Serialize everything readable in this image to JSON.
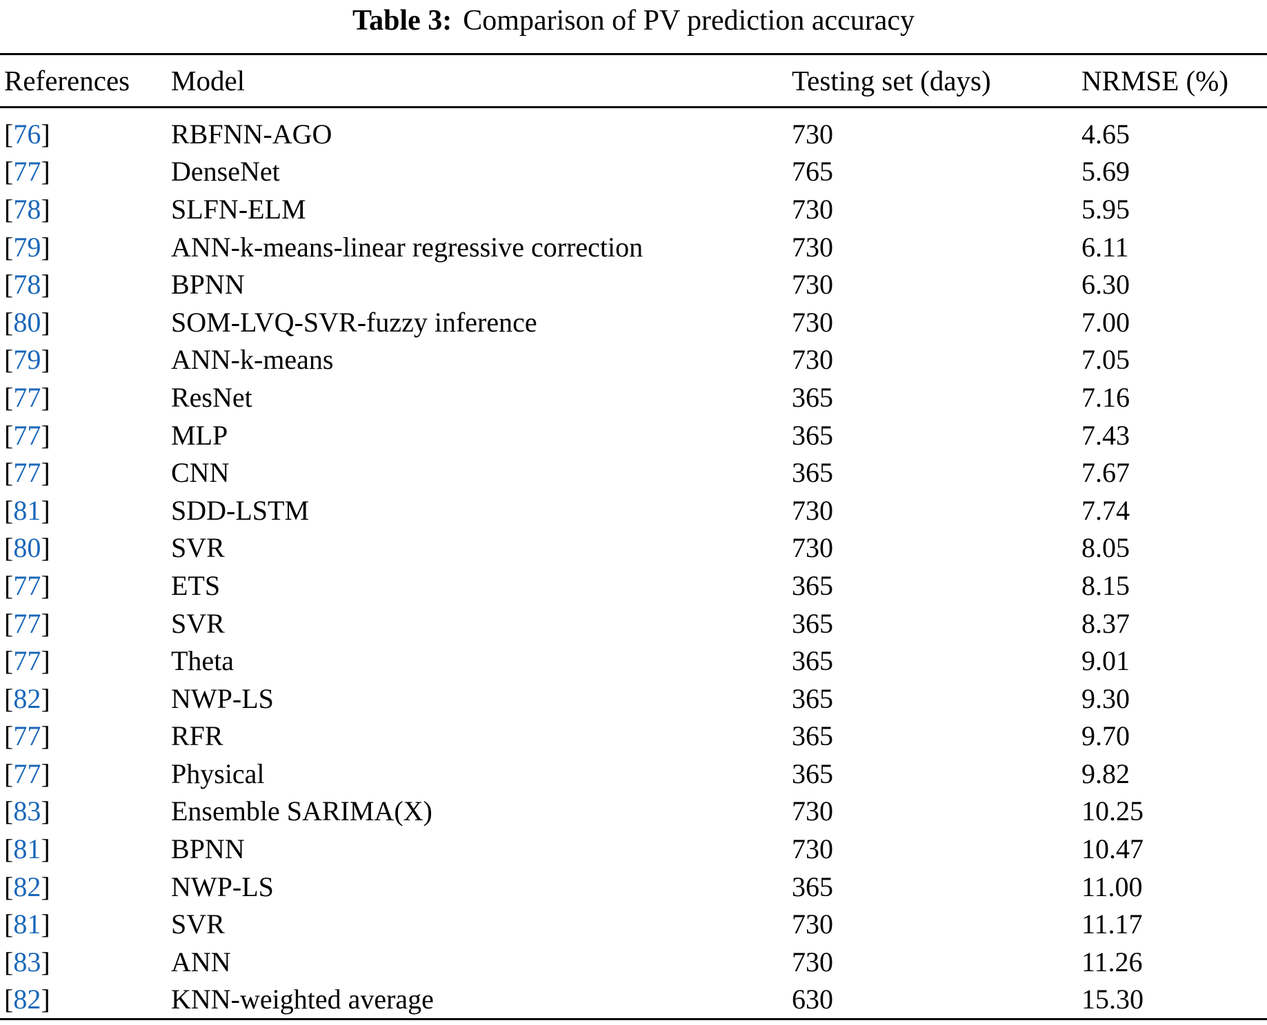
{
  "caption": {
    "label": "Table 3:",
    "text": "Comparison of PV prediction accuracy"
  },
  "symbols": {
    "bracket_open": "[",
    "bracket_close": "]"
  },
  "colors": {
    "reference_link": "#1a67b8",
    "text": "#000000",
    "background": "#ffffff"
  },
  "table": {
    "columns": [
      "References",
      "Model",
      "Testing set (days)",
      "NRMSE (%)"
    ],
    "rows": [
      {
        "ref": "76",
        "model": "RBFNN-AGO",
        "days": "730",
        "nrmse": "4.65"
      },
      {
        "ref": "77",
        "model": "DenseNet",
        "days": "765",
        "nrmse": "5.69"
      },
      {
        "ref": "78",
        "model": "SLFN-ELM",
        "days": "730",
        "nrmse": "5.95"
      },
      {
        "ref": "79",
        "model": "ANN-k-means-linear regressive correction",
        "days": "730",
        "nrmse": "6.11"
      },
      {
        "ref": "78",
        "model": "BPNN",
        "days": "730",
        "nrmse": "6.30"
      },
      {
        "ref": "80",
        "model": "SOM-LVQ-SVR-fuzzy inference",
        "days": "730",
        "nrmse": "7.00"
      },
      {
        "ref": "79",
        "model": "ANN-k-means",
        "days": "730",
        "nrmse": "7.05"
      },
      {
        "ref": "77",
        "model": "ResNet",
        "days": "365",
        "nrmse": "7.16"
      },
      {
        "ref": "77",
        "model": "MLP",
        "days": "365",
        "nrmse": "7.43"
      },
      {
        "ref": "77",
        "model": "CNN",
        "days": "365",
        "nrmse": "7.67"
      },
      {
        "ref": "81",
        "model": "SDD-LSTM",
        "days": "730",
        "nrmse": "7.74"
      },
      {
        "ref": "80",
        "model": "SVR",
        "days": "730",
        "nrmse": "8.05"
      },
      {
        "ref": "77",
        "model": "ETS",
        "days": "365",
        "nrmse": "8.15"
      },
      {
        "ref": "77",
        "model": "SVR",
        "days": "365",
        "nrmse": "8.37"
      },
      {
        "ref": "77",
        "model": "Theta",
        "days": "365",
        "nrmse": "9.01"
      },
      {
        "ref": "82",
        "model": "NWP-LS",
        "days": "365",
        "nrmse": "9.30"
      },
      {
        "ref": "77",
        "model": "RFR",
        "days": "365",
        "nrmse": "9.70"
      },
      {
        "ref": "77",
        "model": "Physical",
        "days": "365",
        "nrmse": "9.82"
      },
      {
        "ref": "83",
        "model": "Ensemble SARIMA(X)",
        "days": "730",
        "nrmse": "10.25"
      },
      {
        "ref": "81",
        "model": "BPNN",
        "days": "730",
        "nrmse": "10.47"
      },
      {
        "ref": "82",
        "model": "NWP-LS",
        "days": "365",
        "nrmse": "11.00"
      },
      {
        "ref": "81",
        "model": "SVR",
        "days": "730",
        "nrmse": "11.17"
      },
      {
        "ref": "83",
        "model": "ANN",
        "days": "730",
        "nrmse": "11.26"
      },
      {
        "ref": "82",
        "model": "KNN-weighted average",
        "days": "630",
        "nrmse": "15.30"
      }
    ]
  }
}
